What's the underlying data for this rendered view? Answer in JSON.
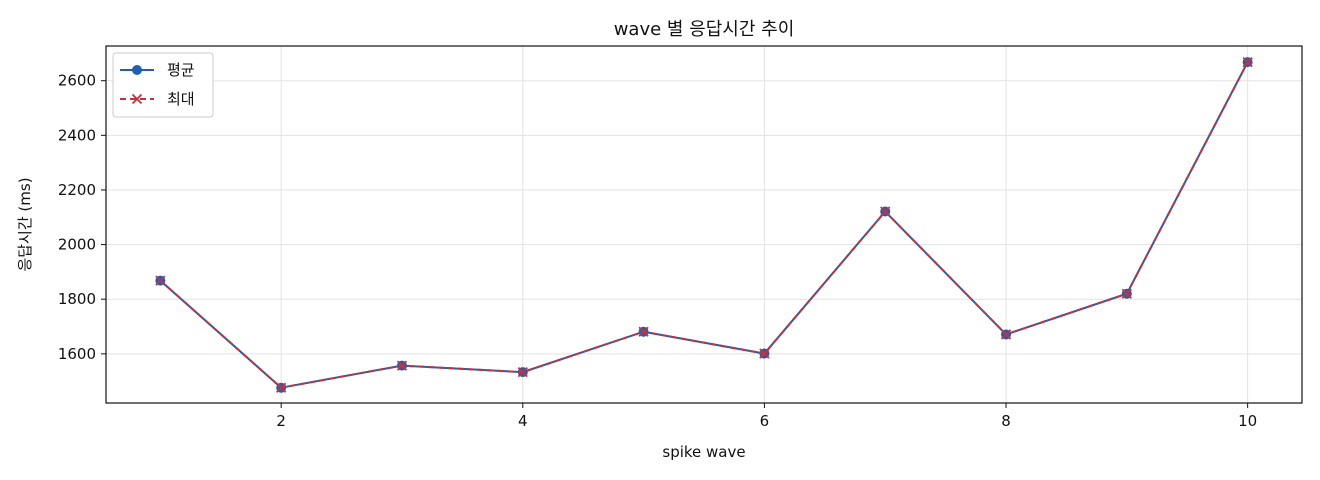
{
  "chart_data": {
    "type": "line",
    "title": "wave 별 응답시간 추이",
    "xlabel": "spike wave",
    "ylabel": "응답시간 (ms)",
    "x": [
      1,
      2,
      3,
      4,
      5,
      6,
      7,
      8,
      9,
      10
    ],
    "xlim": [
      0.55,
      10.45
    ],
    "ylim": [
      1420,
      2727
    ],
    "xticks": [
      2,
      4,
      6,
      8,
      10
    ],
    "yticks": [
      1600,
      1800,
      2000,
      2200,
      2400,
      2600
    ],
    "grid": true,
    "legend_position": "top-left",
    "series": [
      {
        "name": "평균",
        "values": [
          1868,
          1476,
          1557,
          1533,
          1681,
          1601,
          2121,
          1671,
          1820,
          2668
        ],
        "color": "#1f5fb4",
        "line_style": "solid",
        "marker": "circle"
      },
      {
        "name": "최대",
        "values": [
          1868,
          1476,
          1557,
          1533,
          1681,
          1601,
          2121,
          1671,
          1820,
          2668
        ],
        "color": "#c8313a",
        "line_style": "dashed",
        "marker": "x"
      }
    ]
  }
}
